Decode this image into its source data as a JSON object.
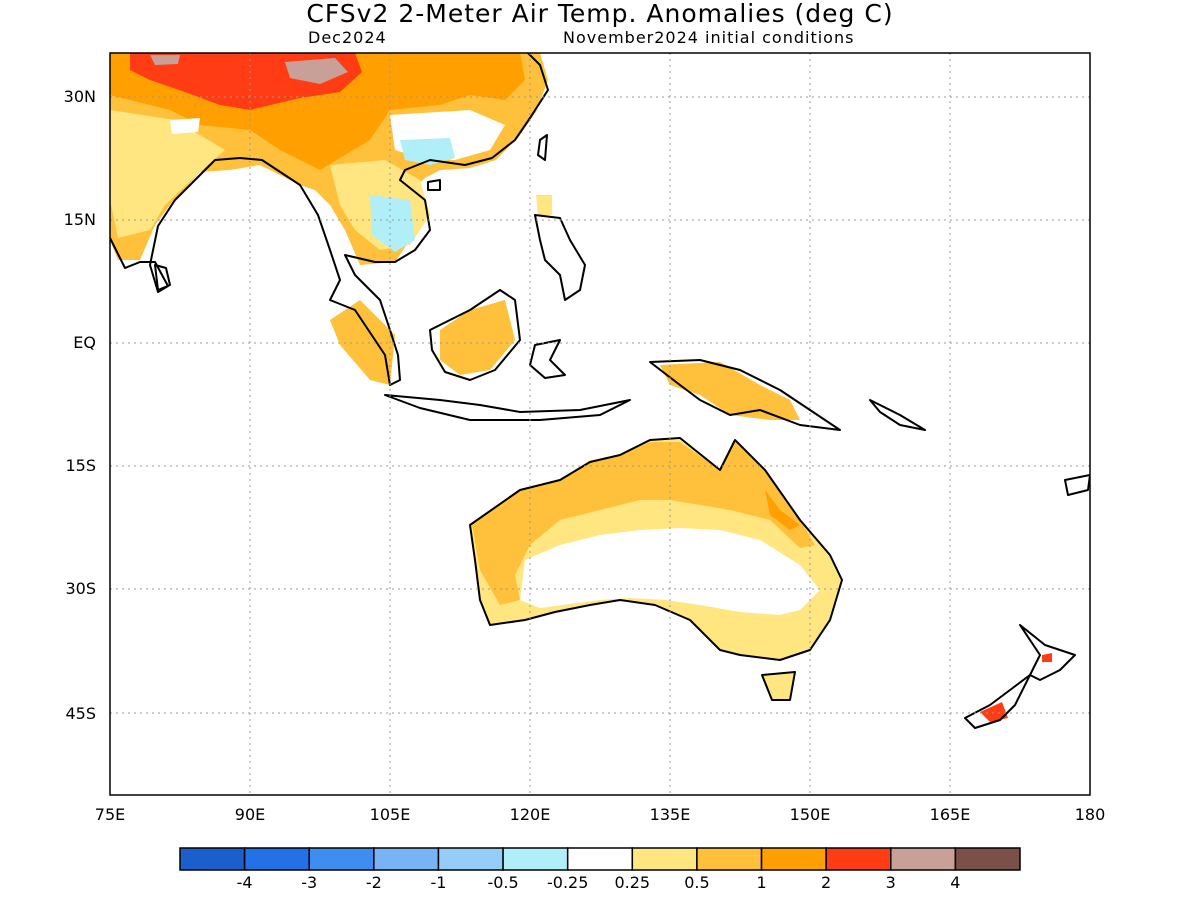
{
  "title": "CFSv2 2-Meter Air Temp. Anomalies (deg C)",
  "valid_month": "Dec2024",
  "init_conditions": "November2024 initial conditions",
  "lat_ticks": [
    "30N",
    "15N",
    "EQ",
    "15S",
    "30S",
    "45S"
  ],
  "lon_ticks": [
    "75E",
    "90E",
    "105E",
    "120E",
    "135E",
    "150E",
    "165E",
    "180"
  ],
  "colorbar": {
    "colors": [
      "#1a5fcc",
      "#2371e6",
      "#3d8ef0",
      "#78b4f5",
      "#96cdf8",
      "#b0eef8",
      "#ffffff",
      "#ffe680",
      "#ffc03c",
      "#ffa000",
      "#ff3c14",
      "#c8a098",
      "#7a5048"
    ],
    "labels": [
      "-4",
      "-3",
      "-2",
      "-1",
      "-0.5",
      "-0.25",
      "0.25",
      "0.5",
      "1",
      "2",
      "3",
      "4"
    ]
  }
}
